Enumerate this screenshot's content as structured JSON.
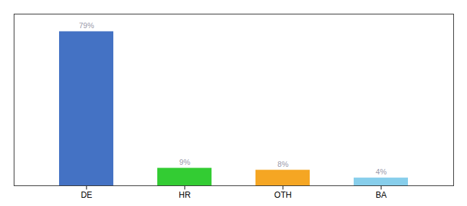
{
  "chart_data": {
    "type": "bar",
    "categories": [
      "DE",
      "HR",
      "OTH",
      "BA"
    ],
    "values": [
      79,
      9,
      8,
      4
    ],
    "value_labels": [
      "79%",
      "9%",
      "8%",
      "4%"
    ],
    "data_labels": true,
    "colors": [
      "#4472C4",
      "#33CC33",
      "#F5A623",
      "#87CEEB"
    ],
    "ylim": [
      0,
      88
    ],
    "tick_labels": "x",
    "grid": false
  }
}
